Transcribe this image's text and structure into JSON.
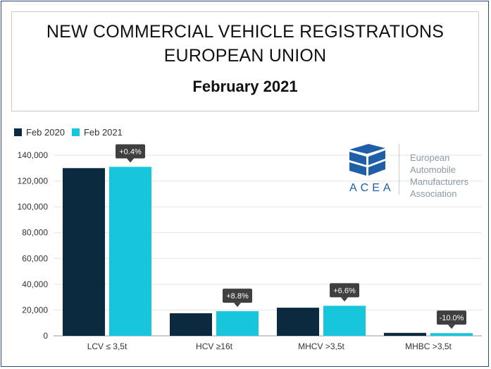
{
  "header": {
    "title_line1": "NEW COMMERCIAL VEHICLE REGISTRATIONS",
    "title_line2": "EUROPEAN UNION",
    "subtitle": "February 2021"
  },
  "logo": {
    "word": "ACEA",
    "org_line1": "European",
    "org_line2": "Automobile",
    "org_line3": "Manufacturers",
    "org_line4": "Association",
    "brand_color": "#1f5fa8"
  },
  "chart_data": {
    "type": "bar",
    "categories": [
      "LCV ≤ 3,5t",
      "HCV ≥16t",
      "MHCV >3,5t",
      "MHBC >3,5t"
    ],
    "series": [
      {
        "name": "Feb 2020",
        "color": "#0b2a3f",
        "values": [
          130000,
          17500,
          21800,
          2300
        ]
      },
      {
        "name": "Feb 2021",
        "color": "#17c6dd",
        "values": [
          131000,
          19100,
          23300,
          2100
        ]
      }
    ],
    "change_labels": [
      "+0.4%",
      "+8.8%",
      "+6.6%",
      "-10.0%"
    ],
    "ylim": [
      0,
      140000
    ],
    "yticks": [
      0,
      20000,
      40000,
      60000,
      80000,
      100000,
      120000,
      140000
    ],
    "ytick_labels": [
      "0",
      "20,000",
      "40,000",
      "60,000",
      "80,000",
      "100,000",
      "120,000",
      "140,000"
    ],
    "grid": true,
    "legend_position": "top-left",
    "xlabel": "",
    "ylabel": ""
  }
}
